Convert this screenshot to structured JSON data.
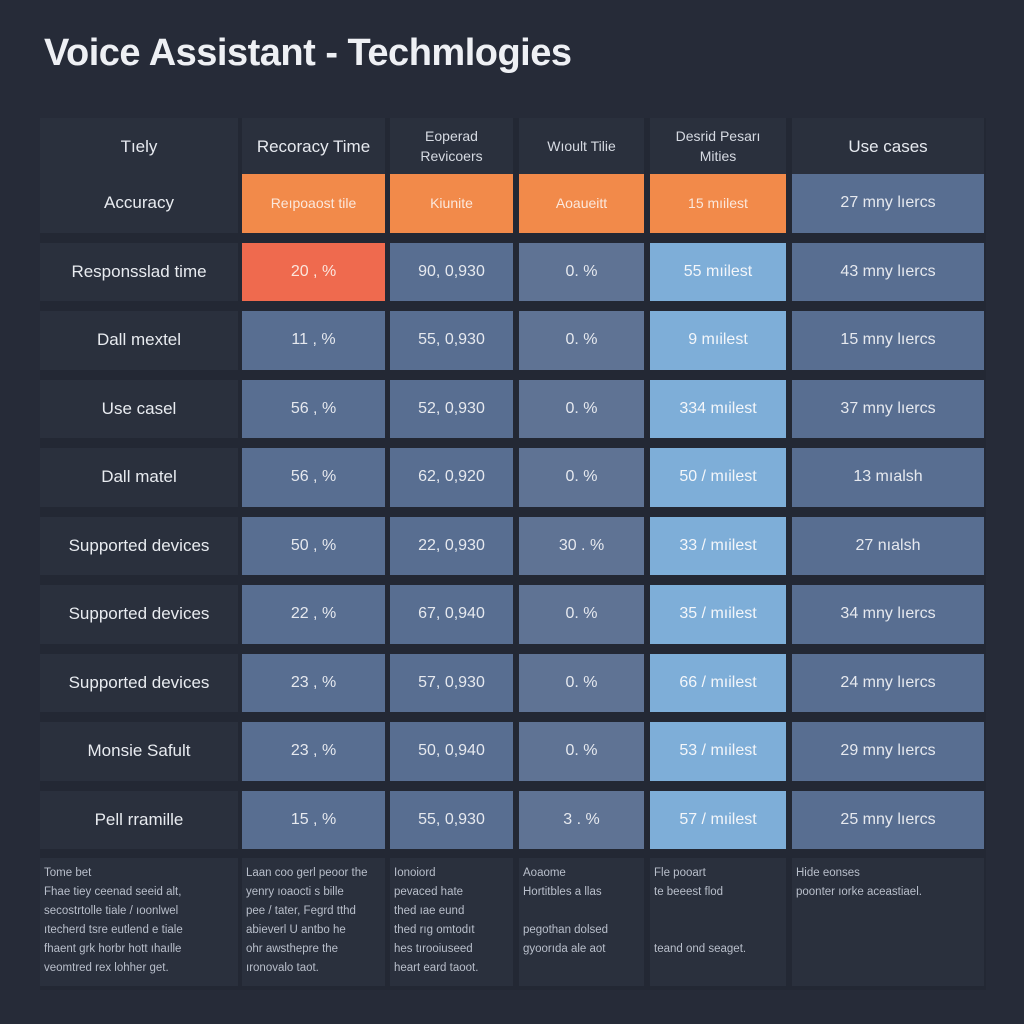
{
  "title": "Voice Assistant - Techmlogies",
  "columns": [
    "Tıely",
    "Recoracy Time",
    "Eoperad Revicoers",
    "Wıoult Tilie",
    "Desrid Pesarı Mities",
    "Use cases"
  ],
  "rows": [
    {
      "label": "Accuracy",
      "cells": [
        "Reıpoaost tile",
        "Kiunite",
        "Aoaueitt",
        "15  mıilest",
        "27  mny lıercs"
      ]
    },
    {
      "label": "Responsslad time",
      "cells": [
        "20 ,  %",
        "90, 0,930",
        "0.   %",
        "55  mıilest",
        "43  mny lıercs"
      ]
    },
    {
      "label": "Dall mextel",
      "cells": [
        "11 ,  %",
        "55, 0,930",
        "0.   %",
        "9  mıilest",
        "15  mny lıercs"
      ]
    },
    {
      "label": "Use casel",
      "cells": [
        "56 ,  %",
        "52, 0,930",
        "0.   %",
        "334  mıilest",
        "37  mny lıercs"
      ]
    },
    {
      "label": "Dall matel",
      "cells": [
        "56 ,  %",
        "62, 0,920",
        "0.   %",
        "50 / mıilest",
        "13  mıalsh"
      ]
    },
    {
      "label": "Supported devices",
      "cells": [
        "50 ,  %",
        "22, 0,930",
        "30 .   %",
        "33 / mıilest",
        "27  nıalsh"
      ]
    },
    {
      "label": "Supported devices",
      "cells": [
        "22 ,  %",
        "67, 0,940",
        "0.   %",
        "35 / mıilest",
        "34  mny lıercs"
      ]
    },
    {
      "label": "Supported devices",
      "cells": [
        "23 ,  %",
        "57, 0,930",
        "0.   %",
        "66 / mıilest",
        "24  mny lıercs"
      ]
    },
    {
      "label": "Monsie Safult",
      "cells": [
        "23 ,  %",
        "50, 0,940",
        "0.   %",
        "53 / mıilest",
        "29  mny lıercs"
      ]
    },
    {
      "label": "Pell rramille",
      "cells": [
        "15 ,  %",
        "55, 0,930",
        "3 .   %",
        "57 / mıilest",
        "25  mny lıercs"
      ]
    }
  ],
  "footnotes": [
    "Tome bet\nFhae tiey ceenad seeid alt,\nsecostrtolle tiale / ıoonlwel\nıtecherd tsre eutlend e tiale\nfhaent grk horbr hott ıhaılle\nveomtred rex lohher get.",
    "Laan coo gerl peoor the\nyenry ıoaocti s bille\npee / tater, Fegrd tthd\nabieverl U antbo he\nohr awsthepre the\nıronovalo taot.",
    "Ionoiord\npevaced hate\nthed ıae eund\nthed rıg omtodıt\nhes tırooiuseed\nheart eard taoot.",
    "Aoaome\nHortitbles a llas\n\npegothan dolsed\ngyoorıda ale aot",
    "Fle pooart\nte beeest flod\n\n\nteand ond seaget.",
    "Hide eonses\npoonter ıorke aceastiael."
  ]
}
